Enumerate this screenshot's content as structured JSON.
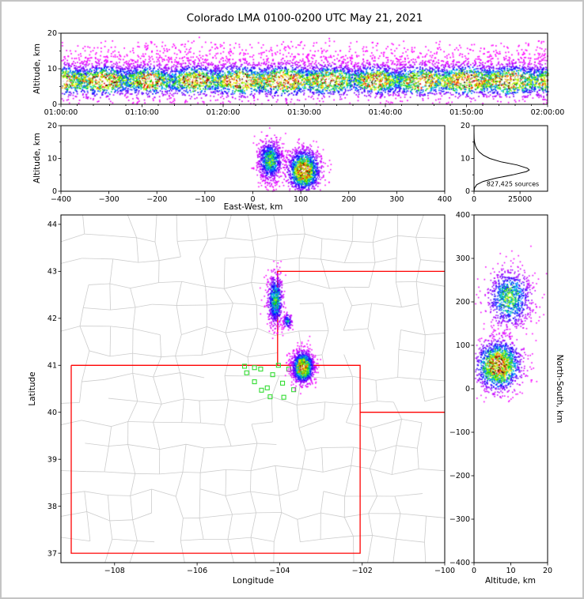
{
  "title": "Colorado LMA 0100-0200 UTC May 21, 2021",
  "colors": {
    "state_border": "#ff0000",
    "county_border": "#cccccc",
    "station_marker": "#33dd33",
    "histogram_line": "#000000",
    "frame": "#000000",
    "background": "#ffffff",
    "page_border": "#c4c4c4"
  },
  "colormap": {
    "description": "lightning source density, low to high",
    "stops": [
      [
        0,
        "#ff00ff"
      ],
      [
        0.14,
        "#8c00ff"
      ],
      [
        0.26,
        "#0000ff"
      ],
      [
        0.38,
        "#00c8ff"
      ],
      [
        0.5,
        "#00c800"
      ],
      [
        0.6,
        "#aaff00"
      ],
      [
        0.68,
        "#ffff00"
      ],
      [
        0.76,
        "#ff8c00"
      ],
      [
        0.84,
        "#ff0000"
      ],
      [
        0.905,
        "#780000"
      ],
      [
        0.935,
        "#000000"
      ],
      [
        0.965,
        "#969696"
      ],
      [
        1,
        "#ffffff"
      ]
    ]
  },
  "chart_data": [
    {
      "id": "time-altitude",
      "type": "scatter",
      "xlabel": "",
      "ylabel": "Altitude, km",
      "x_tick_labels": [
        "01:00:00",
        "01:10:00",
        "01:20:00",
        "01:30:00",
        "01:40:00",
        "01:50:00",
        "02:00:00"
      ],
      "ylim": [
        0,
        20
      ],
      "yticks": [
        0,
        10,
        20
      ],
      "band": {
        "alt_center_km": 6.8,
        "alt_spread_km": 2.0,
        "alt_range_km": [
          0.3,
          18
        ],
        "n": 9000,
        "description": "continuous storm band all hour: black/white core 5-8 km, red/orange 3-12 km, purple specks to ~17 km"
      }
    },
    {
      "id": "east-west-altitude",
      "type": "scatter",
      "xlabel": "East-West, km",
      "ylabel": "Altitude, km",
      "xlim": [
        -400,
        400
      ],
      "xticks": [
        -400,
        -300,
        -200,
        -100,
        0,
        100,
        200,
        300,
        400
      ],
      "ylim": [
        0,
        20
      ],
      "yticks": [
        0,
        10,
        20
      ],
      "clusters": [
        {
          "cx": 35,
          "cy": 9.5,
          "sx": 13,
          "sy": 3.2,
          "peak": 0.62,
          "n": 900
        },
        {
          "cx": 105,
          "cy": 6.5,
          "sx": 17,
          "sy": 3.2,
          "peak": 1.05,
          "n": 1500
        }
      ]
    },
    {
      "id": "altitude-histogram",
      "type": "line",
      "xlim": [
        0,
        40000
      ],
      "xticks": [
        0,
        25000
      ],
      "ylim": [
        0,
        20
      ],
      "yticks": [
        0,
        10,
        20
      ],
      "annotation": "827,425 sources",
      "altitudes_km": [
        0,
        1,
        2,
        3,
        4,
        5,
        6,
        6.5,
        7,
        8,
        9,
        10,
        11,
        12,
        13,
        14,
        15,
        16,
        17,
        18,
        20
      ],
      "source_counts": [
        0,
        300,
        1500,
        5000,
        12000,
        21000,
        28500,
        30000,
        29000,
        23500,
        14500,
        8500,
        5000,
        2800,
        1500,
        700,
        300,
        100,
        30,
        0,
        0
      ]
    },
    {
      "id": "plan-view-map",
      "type": "scatter",
      "xlabel": "Longitude",
      "ylabel": "Latitude",
      "xlim": [
        -109.3,
        -100.0
      ],
      "xticks": [
        -108,
        -106,
        -104,
        -102,
        -100
      ],
      "ylim": [
        36.8,
        44.2
      ],
      "yticks": [
        37,
        38,
        39,
        40,
        41,
        42,
        43,
        44
      ],
      "clusters": [
        {
          "cx": -104.12,
          "cy": 42.4,
          "sx": 0.1,
          "sy": 0.28,
          "peak": 0.58,
          "n": 700
        },
        {
          "cx": -103.82,
          "cy": 41.95,
          "sx": 0.06,
          "sy": 0.09,
          "peak": 0.45,
          "n": 110
        },
        {
          "cx": -103.45,
          "cy": 40.97,
          "sx": 0.13,
          "sy": 0.17,
          "peak": 1.05,
          "n": 1500
        }
      ],
      "state_border_segments": [
        {
          "name": "colorado",
          "points": [
            [
              -109.05,
              41
            ],
            [
              -102.05,
              41
            ],
            [
              -102.05,
              37
            ],
            [
              -109.05,
              37
            ],
            [
              -109.05,
              41
            ]
          ]
        },
        {
          "name": "wyoming-southeast",
          "points": [
            [
              -104.05,
              41
            ],
            [
              -104.05,
              43
            ],
            [
              -100,
              43
            ]
          ]
        },
        {
          "name": "nebraska-kansas",
          "points": [
            [
              -102.05,
              40
            ],
            [
              -100,
              40
            ]
          ]
        }
      ],
      "stations": [
        [
          -104.85,
          40.98
        ],
        [
          -104.8,
          40.84
        ],
        [
          -104.61,
          40.95
        ],
        [
          -104.61,
          40.65
        ],
        [
          -104.46,
          40.92
        ],
        [
          -104.44,
          40.47
        ],
        [
          -104.3,
          40.52
        ],
        [
          -104.23,
          40.33
        ],
        [
          -104.17,
          40.8
        ],
        [
          -104.03,
          41.0
        ],
        [
          -103.93,
          40.62
        ],
        [
          -103.9,
          40.32
        ],
        [
          -103.78,
          40.92
        ],
        [
          -103.66,
          40.48
        ]
      ]
    },
    {
      "id": "altitude-north-south",
      "type": "scatter",
      "xlabel": "Altitude, km",
      "ylabel": "North-South, km",
      "xlim": [
        0,
        20
      ],
      "xticks": [
        0,
        10,
        20
      ],
      "ylim": [
        -400,
        400
      ],
      "yticks": [
        -400,
        -300,
        -200,
        -100,
        0,
        100,
        200,
        300,
        400
      ],
      "clusters": [
        {
          "cx": 9.5,
          "cy": 210,
          "sx": 3.2,
          "sy": 35,
          "peak": 0.62,
          "n": 900
        },
        {
          "cx": 6.5,
          "cy": 55,
          "sx": 3.2,
          "sy": 30,
          "peak": 1.05,
          "n": 1500
        }
      ]
    }
  ]
}
